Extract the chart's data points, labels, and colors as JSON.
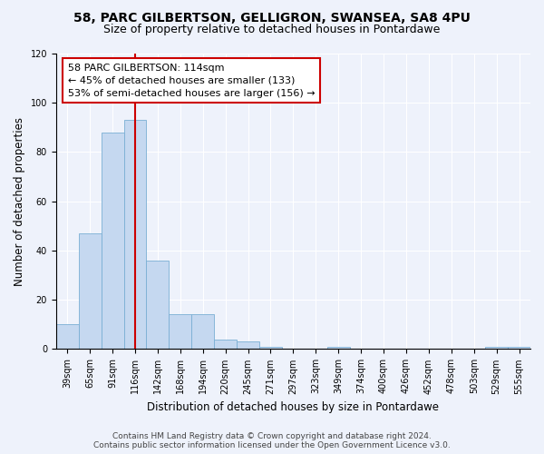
{
  "title_line1": "58, PARC GILBERTSON, GELLIGRON, SWANSEA, SA8 4PU",
  "title_line2": "Size of property relative to detached houses in Pontardawe",
  "xlabel": "Distribution of detached houses by size in Pontardawe",
  "ylabel": "Number of detached properties",
  "categories": [
    "39sqm",
    "65sqm",
    "91sqm",
    "116sqm",
    "142sqm",
    "168sqm",
    "194sqm",
    "220sqm",
    "245sqm",
    "271sqm",
    "297sqm",
    "323sqm",
    "349sqm",
    "374sqm",
    "400sqm",
    "426sqm",
    "452sqm",
    "478sqm",
    "503sqm",
    "529sqm",
    "555sqm"
  ],
  "values": [
    10,
    47,
    88,
    93,
    36,
    14,
    14,
    4,
    3,
    1,
    0,
    0,
    1,
    0,
    0,
    0,
    0,
    0,
    0,
    1,
    1
  ],
  "bar_color": "#c5d8f0",
  "bar_edge_color": "#7aafd4",
  "property_line_x": 3,
  "annotation_line1": "58 PARC GILBERTSON: 114sqm",
  "annotation_line2": "← 45% of detached houses are smaller (133)",
  "annotation_line3": "53% of semi-detached houses are larger (156) →",
  "annotation_box_color": "#ffffff",
  "annotation_box_edge": "#cc0000",
  "vline_color": "#cc0000",
  "ylim": [
    0,
    120
  ],
  "yticks": [
    0,
    20,
    40,
    60,
    80,
    100,
    120
  ],
  "footer_line1": "Contains HM Land Registry data © Crown copyright and database right 2024.",
  "footer_line2": "Contains public sector information licensed under the Open Government Licence v3.0.",
  "bg_color": "#eef2fb",
  "grid_color": "#ffffff",
  "title_fontsize": 10,
  "subtitle_fontsize": 9,
  "axis_label_fontsize": 8.5,
  "tick_fontsize": 7,
  "annotation_fontsize": 8,
  "footer_fontsize": 6.5
}
